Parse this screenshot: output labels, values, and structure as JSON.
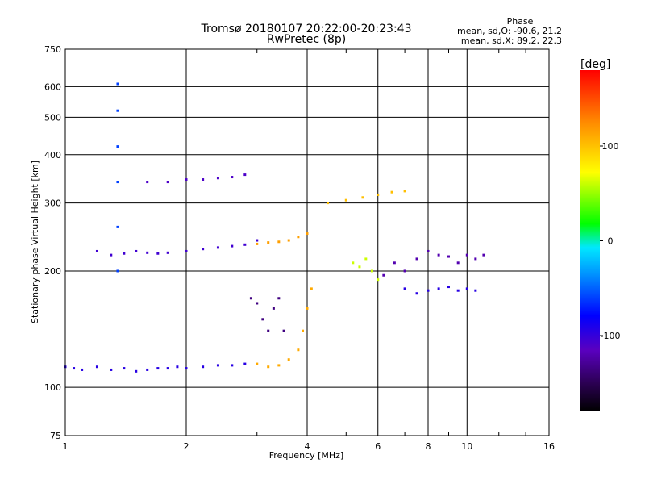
{
  "chart_data": {
    "type": "scatter",
    "title": "Tromsø 20180107 20:22:00-20:23:43",
    "subtitle": "RwPretec (8p)",
    "xlabel": "Frequency [MHz]",
    "ylabel": "Stationary phase Virtual Height [km]",
    "x_scale": "log",
    "y_scale": "log",
    "xlim": [
      1,
      16
    ],
    "ylim": [
      75,
      750
    ],
    "x_ticks": [
      1,
      2,
      4,
      6,
      8,
      10,
      16
    ],
    "y_ticks": [
      75,
      100,
      200,
      300,
      400,
      500,
      600,
      750
    ],
    "grid": true,
    "phase_info": {
      "heading": "Phase",
      "line_o": "mean, sd,O: -90.6, 21.2",
      "line_x": "mean, sd,X:  89.2, 22.3"
    },
    "colorbar": {
      "label": "[deg]",
      "range": [
        -180,
        180
      ],
      "ticks": [
        100,
        0,
        -100
      ]
    },
    "traces": [
      {
        "phase": -95,
        "points": [
          [
            1.0,
            113
          ],
          [
            1.05,
            112
          ],
          [
            1.1,
            111
          ],
          [
            1.2,
            113
          ],
          [
            1.3,
            111
          ],
          [
            1.4,
            112
          ],
          [
            1.5,
            110
          ],
          [
            1.6,
            111
          ],
          [
            1.7,
            112
          ],
          [
            1.8,
            112
          ],
          [
            1.9,
            113
          ],
          [
            2.0,
            112
          ],
          [
            2.2,
            113
          ],
          [
            2.4,
            114
          ],
          [
            2.6,
            114
          ],
          [
            2.8,
            115
          ]
        ]
      },
      {
        "phase": -105,
        "points": [
          [
            1.2,
            225
          ],
          [
            1.3,
            220
          ],
          [
            1.4,
            222
          ],
          [
            1.5,
            225
          ],
          [
            1.6,
            223
          ],
          [
            1.7,
            222
          ],
          [
            1.8,
            223
          ],
          [
            2.0,
            225
          ],
          [
            2.2,
            228
          ],
          [
            2.4,
            230
          ],
          [
            2.6,
            232
          ],
          [
            2.8,
            234
          ],
          [
            3.0,
            240
          ]
        ]
      },
      {
        "phase": 110,
        "points": [
          [
            3.0,
            115
          ],
          [
            3.2,
            113
          ],
          [
            3.4,
            114
          ],
          [
            3.6,
            118
          ],
          [
            3.8,
            125
          ],
          [
            3.9,
            140
          ],
          [
            4.0,
            160
          ],
          [
            4.1,
            180
          ]
        ]
      },
      {
        "phase": 115,
        "points": [
          [
            3.0,
            235
          ],
          [
            3.2,
            237
          ],
          [
            3.4,
            238
          ],
          [
            3.6,
            240
          ],
          [
            3.8,
            245
          ],
          [
            4.0,
            250
          ]
        ]
      },
      {
        "phase": -135,
        "points": [
          [
            2.9,
            170
          ],
          [
            3.0,
            165
          ],
          [
            3.1,
            150
          ],
          [
            3.2,
            140
          ],
          [
            3.3,
            160
          ],
          [
            3.4,
            170
          ],
          [
            3.5,
            140
          ]
        ]
      },
      {
        "phase": 60,
        "points": [
          [
            5.2,
            210
          ],
          [
            5.4,
            205
          ],
          [
            5.6,
            215
          ],
          [
            5.8,
            200
          ],
          [
            6.0,
            190
          ]
        ]
      },
      {
        "phase": -120,
        "points": [
          [
            6.2,
            195
          ],
          [
            6.6,
            210
          ],
          [
            7.0,
            200
          ],
          [
            7.5,
            215
          ],
          [
            8.0,
            225
          ],
          [
            8.5,
            220
          ],
          [
            9.0,
            218
          ],
          [
            9.5,
            210
          ],
          [
            10.0,
            220
          ],
          [
            10.5,
            215
          ],
          [
            11.0,
            220
          ]
        ]
      },
      {
        "phase": 100,
        "points": [
          [
            4.5,
            300
          ],
          [
            5.0,
            305
          ],
          [
            5.5,
            310
          ],
          [
            6.0,
            315
          ],
          [
            6.5,
            320
          ],
          [
            7.0,
            322
          ]
        ]
      },
      {
        "phase": -110,
        "points": [
          [
            1.6,
            340
          ],
          [
            1.8,
            340
          ],
          [
            2.0,
            345
          ],
          [
            2.2,
            345
          ],
          [
            2.4,
            348
          ],
          [
            2.6,
            350
          ],
          [
            2.8,
            355
          ]
        ]
      },
      {
        "phase": -60,
        "points": [
          [
            1.35,
            610
          ],
          [
            1.35,
            520
          ],
          [
            1.35,
            420
          ],
          [
            1.35,
            340
          ],
          [
            1.35,
            260
          ],
          [
            1.35,
            200
          ]
        ]
      },
      {
        "phase": -95,
        "points": [
          [
            7.0,
            180
          ],
          [
            7.5,
            175
          ],
          [
            8.0,
            178
          ],
          [
            8.5,
            180
          ],
          [
            9.0,
            182
          ],
          [
            9.5,
            178
          ],
          [
            10.0,
            180
          ],
          [
            10.5,
            178
          ]
        ]
      }
    ]
  }
}
